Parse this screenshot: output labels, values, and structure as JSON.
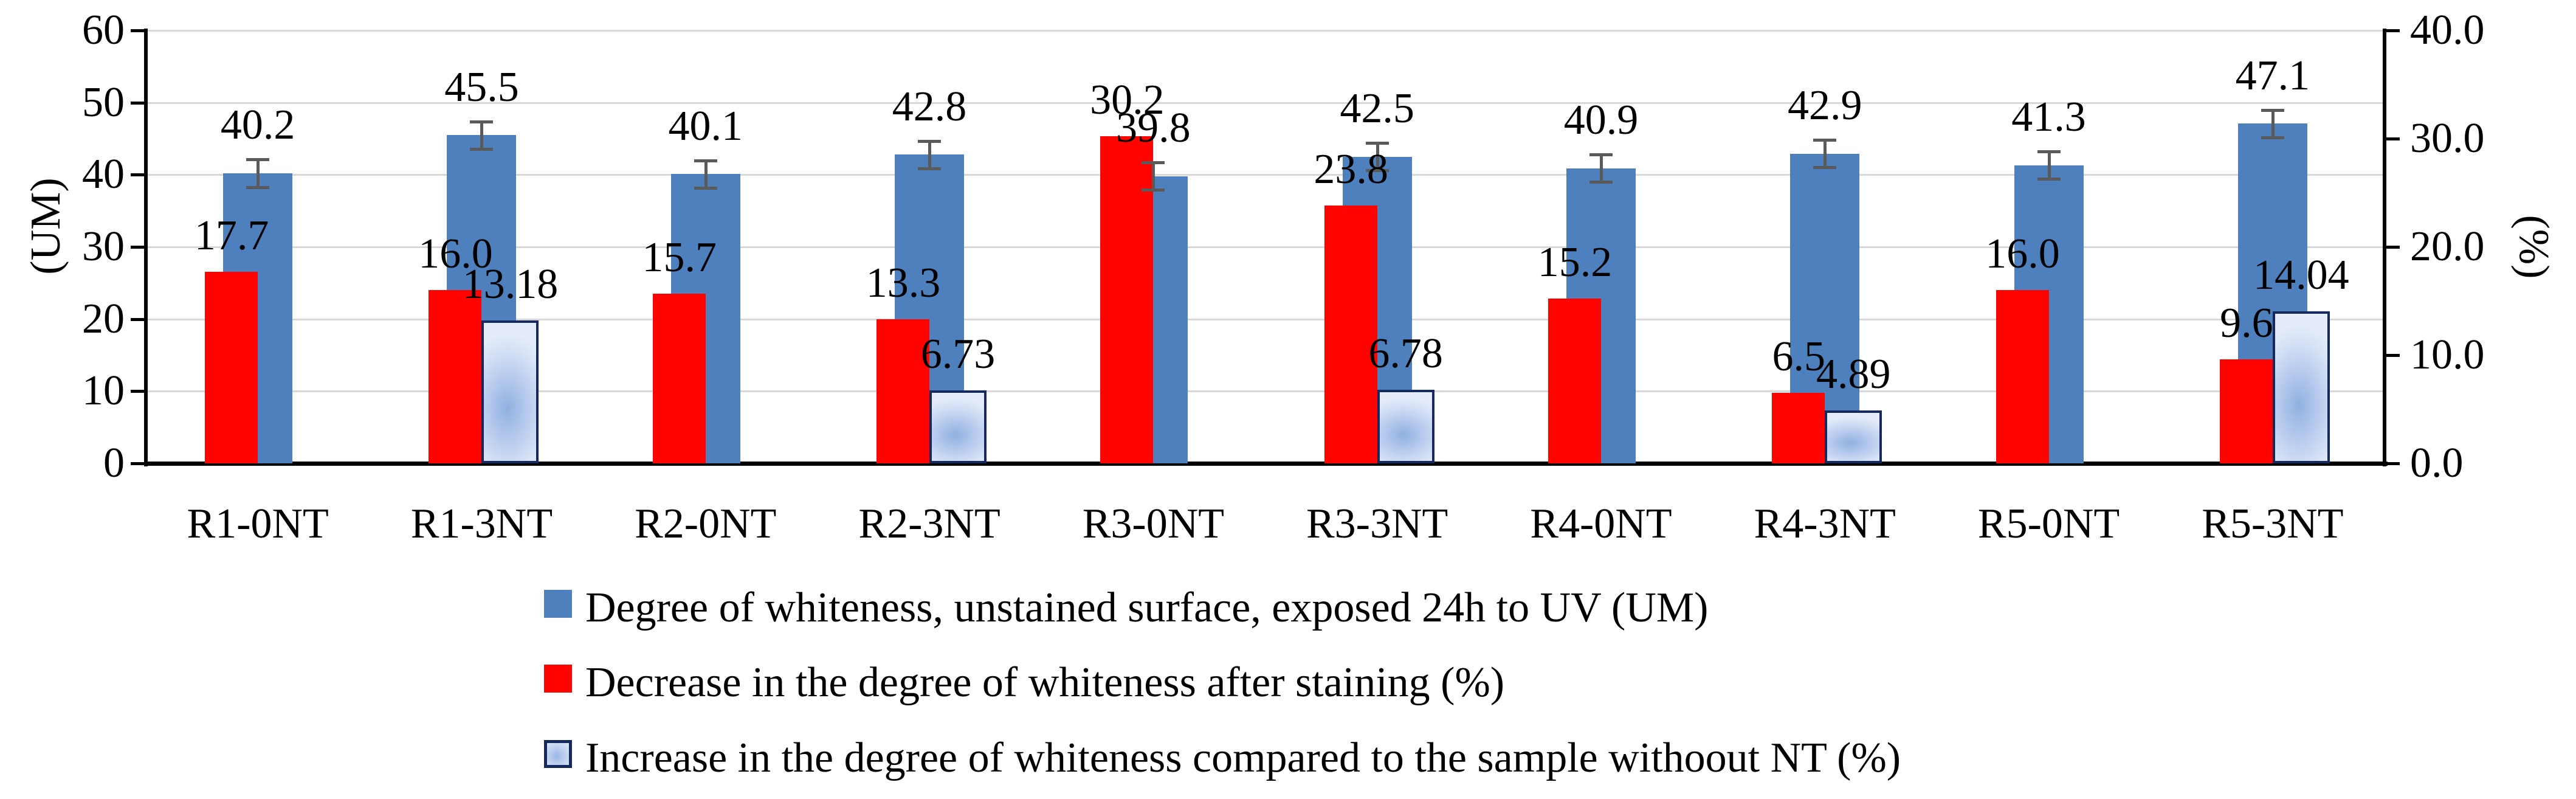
{
  "chart_data": {
    "type": "bar",
    "categories": [
      "R1-0NT",
      "R1-3NT",
      "R2-0NT",
      "R2-3NT",
      "R3-0NT",
      "R3-3NT",
      "R4-0NT",
      "R4-3NT",
      "R5-0NT",
      "R5-3NT"
    ],
    "series": [
      {
        "name": "Degree of whiteness, unstained surface, exposed 24h to UV (UM)",
        "axis": "left",
        "color": "#4e80bd",
        "values": [
          40.2,
          45.5,
          40.1,
          42.8,
          39.8,
          42.5,
          40.9,
          42.9,
          41.3,
          47.1
        ],
        "labels": [
          "40.2",
          "45.5",
          "40.1",
          "42.8",
          "39.8",
          "42.5",
          "40.9",
          "42.9",
          "41.3",
          "47.1"
        ],
        "error_bar_um": 1.9
      },
      {
        "name": "Decrease in the degree of whiteness after staining (%)",
        "axis": "right",
        "color": "#fe0400",
        "values": [
          17.7,
          16.0,
          15.7,
          13.3,
          30.2,
          23.8,
          15.2,
          6.5,
          16.0,
          9.6
        ],
        "labels": [
          "17.7",
          "16.0",
          "15.7",
          "13.3",
          "30.2",
          "23.8",
          "15.2",
          "6.5",
          "16.0",
          "9.6"
        ]
      },
      {
        "name": "Increase in the degree of whiteness compared to the sample withoout NT (%)",
        "axis": "right",
        "color": "#c3d4f0",
        "border_color": "#16295e",
        "values": [
          null,
          13.18,
          null,
          6.73,
          null,
          6.78,
          null,
          4.89,
          null,
          14.04
        ],
        "labels": [
          null,
          "13.18",
          null,
          "6.73",
          null,
          "6.78",
          null,
          "4.89",
          null,
          "14.04"
        ]
      }
    ],
    "left_axis": {
      "title": "(UM)",
      "min": 0,
      "max": 60,
      "step": 10,
      "tick_labels": [
        "0",
        "10",
        "20",
        "30",
        "40",
        "50",
        "60"
      ]
    },
    "right_axis": {
      "title": "(%)",
      "min": 0.0,
      "max": 40.0,
      "step": 10.0,
      "tick_labels": [
        "0.0",
        "10.0",
        "20.0",
        "30.0",
        "40.0"
      ]
    },
    "grid": true,
    "legend_position": "bottom",
    "legend": [
      "Degree of whiteness, unstained surface, exposed 24h to UV (UM)",
      "Decrease in the degree of whiteness after staining (%)",
      "Increase in the degree of whiteness compared to the sample withoout NT (%)"
    ]
  },
  "colors": {
    "blue_series": "#4e80bd",
    "red_series": "#fe0400",
    "light_series_border": "#16295e",
    "gridline": "#d8d8d8",
    "error_bar": "#5a5a5a",
    "axis": "#000000"
  }
}
